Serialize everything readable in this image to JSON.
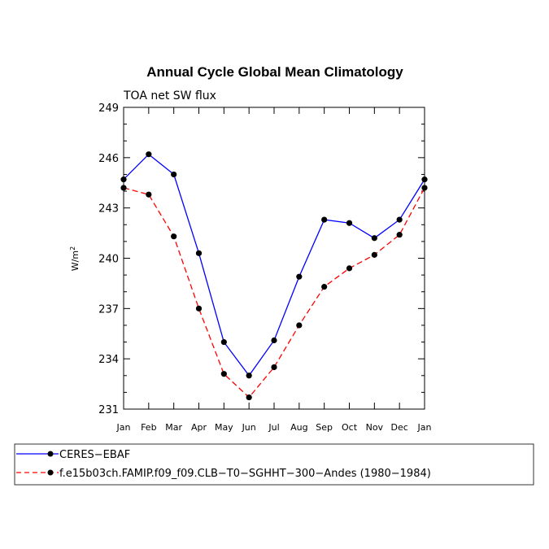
{
  "chart_data": {
    "type": "line",
    "title": "Annual Cycle Global Mean Climatology",
    "subtitle": "TOA net SW flux",
    "ylabel": "W/m",
    "ylabel_superscript": "2",
    "xlabel": "",
    "categories": [
      "Jan",
      "Feb",
      "Mar",
      "Apr",
      "May",
      "Jun",
      "Jul",
      "Aug",
      "Sep",
      "Oct",
      "Nov",
      "Dec",
      "Jan"
    ],
    "ylim": [
      231,
      249
    ],
    "yticks": [
      "231",
      "234",
      "237",
      "240",
      "243",
      "246",
      "249"
    ],
    "grid": false,
    "legend_position": "bottom",
    "series": [
      {
        "name": "CERES−EBAF",
        "color": "#0000ff",
        "style": "solid",
        "marker": "dot",
        "values": [
          244.7,
          246.2,
          245.0,
          240.3,
          235.0,
          233.0,
          235.1,
          238.9,
          242.3,
          242.1,
          241.2,
          242.3,
          244.7
        ]
      },
      {
        "name": "f.e15b03ch.FAMIP.f09_f09.CLB−T0−SGHHT−300−Andes (1980−1984)",
        "color": "#ff0000",
        "style": "dashed",
        "marker": "dot",
        "values": [
          244.2,
          243.8,
          241.3,
          237.0,
          233.1,
          231.7,
          233.5,
          236.0,
          238.3,
          239.4,
          240.2,
          241.4,
          244.2
        ]
      }
    ]
  }
}
